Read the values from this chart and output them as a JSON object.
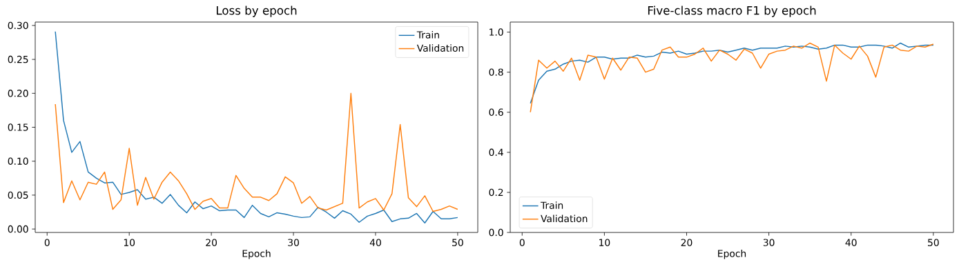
{
  "chart_data": [
    {
      "type": "line",
      "title": "Loss by epoch",
      "xlabel": "Epoch",
      "x": [
        1,
        2,
        3,
        4,
        5,
        6,
        7,
        8,
        9,
        10,
        11,
        12,
        13,
        14,
        15,
        16,
        17,
        18,
        19,
        20,
        21,
        22,
        23,
        24,
        25,
        26,
        27,
        28,
        29,
        30,
        31,
        32,
        33,
        34,
        35,
        36,
        37,
        38,
        39,
        40,
        41,
        42,
        43,
        44,
        45,
        46,
        47,
        48,
        49,
        50
      ],
      "series": [
        {
          "name": "Train",
          "color": "#1f77b4",
          "values": [
            0.291,
            0.16,
            0.113,
            0.129,
            0.084,
            0.075,
            0.068,
            0.069,
            0.051,
            0.054,
            0.058,
            0.044,
            0.047,
            0.038,
            0.051,
            0.035,
            0.024,
            0.04,
            0.03,
            0.034,
            0.027,
            0.028,
            0.028,
            0.017,
            0.035,
            0.023,
            0.018,
            0.024,
            0.022,
            0.019,
            0.017,
            0.018,
            0.032,
            0.025,
            0.016,
            0.027,
            0.022,
            0.01,
            0.019,
            0.023,
            0.028,
            0.011,
            0.015,
            0.016,
            0.023,
            0.009,
            0.026,
            0.015,
            0.015,
            0.017
          ]
        },
        {
          "name": "Validation",
          "color": "#ff7f0e",
          "values": [
            0.184,
            0.039,
            0.071,
            0.043,
            0.069,
            0.066,
            0.084,
            0.029,
            0.043,
            0.119,
            0.035,
            0.076,
            0.044,
            0.069,
            0.084,
            0.071,
            0.052,
            0.029,
            0.041,
            0.045,
            0.031,
            0.031,
            0.079,
            0.06,
            0.047,
            0.047,
            0.042,
            0.052,
            0.077,
            0.068,
            0.038,
            0.048,
            0.031,
            0.028,
            0.033,
            0.038,
            0.2,
            0.031,
            0.04,
            0.045,
            0.028,
            0.052,
            0.154,
            0.046,
            0.033,
            0.049,
            0.026,
            0.029,
            0.034,
            0.029
          ]
        }
      ],
      "xlim": [
        -1.45,
        52.45
      ],
      "ylim": [
        -0.005,
        0.305
      ],
      "xticks": [
        0,
        10,
        20,
        30,
        40,
        50
      ],
      "yticks": [
        {
          "value": 0,
          "label": "0.00"
        },
        {
          "value": 0.05,
          "label": "0.05"
        },
        {
          "value": 0.1,
          "label": "0.10"
        },
        {
          "value": 0.15,
          "label": "0.15"
        },
        {
          "value": 0.2,
          "label": "0.20"
        },
        {
          "value": 0.25,
          "label": "0.25"
        },
        {
          "value": 0.3,
          "label": "0.30"
        }
      ],
      "legend": "top right"
    },
    {
      "type": "line",
      "title": "Five-class macro F1 by epoch",
      "xlabel": "Epoch",
      "x": [
        1,
        2,
        3,
        4,
        5,
        6,
        7,
        8,
        9,
        10,
        11,
        12,
        13,
        14,
        15,
        16,
        17,
        18,
        19,
        20,
        21,
        22,
        23,
        24,
        25,
        26,
        27,
        28,
        29,
        30,
        31,
        32,
        33,
        34,
        35,
        36,
        37,
        38,
        39,
        40,
        41,
        42,
        43,
        44,
        45,
        46,
        47,
        48,
        49,
        50
      ],
      "series": [
        {
          "name": "Train",
          "color": "#1f77b4",
          "values": [
            0.645,
            0.76,
            0.805,
            0.815,
            0.84,
            0.855,
            0.86,
            0.85,
            0.875,
            0.875,
            0.865,
            0.87,
            0.87,
            0.885,
            0.875,
            0.88,
            0.9,
            0.895,
            0.905,
            0.89,
            0.895,
            0.905,
            0.905,
            0.91,
            0.9,
            0.91,
            0.92,
            0.91,
            0.92,
            0.92,
            0.92,
            0.93,
            0.925,
            0.93,
            0.925,
            0.915,
            0.92,
            0.935,
            0.935,
            0.925,
            0.925,
            0.935,
            0.935,
            0.93,
            0.92,
            0.945,
            0.925,
            0.93,
            0.935,
            0.935
          ]
        },
        {
          "name": "Validation",
          "color": "#ff7f0e",
          "values": [
            0.6,
            0.86,
            0.82,
            0.855,
            0.805,
            0.87,
            0.76,
            0.885,
            0.875,
            0.765,
            0.87,
            0.81,
            0.875,
            0.87,
            0.8,
            0.815,
            0.91,
            0.925,
            0.875,
            0.875,
            0.89,
            0.92,
            0.855,
            0.91,
            0.89,
            0.86,
            0.915,
            0.895,
            0.82,
            0.89,
            0.905,
            0.91,
            0.93,
            0.92,
            0.945,
            0.925,
            0.755,
            0.935,
            0.895,
            0.865,
            0.93,
            0.88,
            0.775,
            0.925,
            0.935,
            0.91,
            0.905,
            0.93,
            0.925,
            0.94
          ]
        }
      ],
      "xlim": [
        -1.45,
        52.45
      ],
      "ylim": [
        0,
        1.05
      ],
      "xticks": [
        0,
        10,
        20,
        30,
        40,
        50
      ],
      "yticks": [
        {
          "value": 0,
          "label": "0.0"
        },
        {
          "value": 0.2,
          "label": "0.2"
        },
        {
          "value": 0.4,
          "label": "0.4"
        },
        {
          "value": 0.6,
          "label": "0.6"
        },
        {
          "value": 0.8,
          "label": "0.8"
        },
        {
          "value": 1.0,
          "label": "1.0"
        }
      ],
      "legend": "bottom left"
    }
  ]
}
